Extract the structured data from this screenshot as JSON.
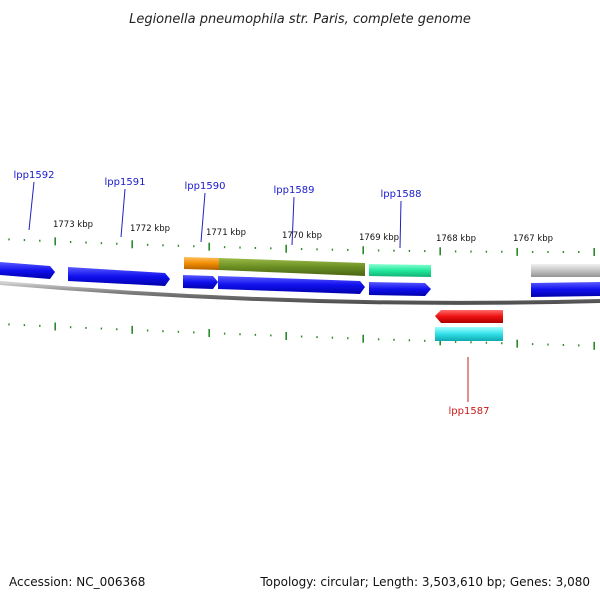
{
  "title": "Legionella pneumophila str. Paris, complete genome",
  "accession": "Accession: NC_006368",
  "topology": "Topology: circular; Length: 3,503,610 bp; Genes: 3,080",
  "kbp_labels": [
    "1773 kbp",
    "1772 kbp",
    "1771 kbp",
    "1770 kbp",
    "1769 kbp",
    "1768 kbp",
    "1767 kbp"
  ],
  "gene_labels": [
    {
      "text": "lpp1592",
      "color": "#1a1acc"
    },
    {
      "text": "lpp1591",
      "color": "#1a1acc"
    },
    {
      "text": "lpp1590",
      "color": "#1a1acc"
    },
    {
      "text": "lpp1589",
      "color": "#1a1acc"
    },
    {
      "text": "lpp1588",
      "color": "#1a1acc"
    },
    {
      "text": "lpp1587",
      "color": "#cc1a1a"
    }
  ],
  "colors": {
    "cds_forward": "#1414e6",
    "cds_reverse": "#e60000",
    "backbone": "#8a8a8a",
    "ticks": "#2a8a2a",
    "orange": "#f08c00",
    "olive": "#6b8e23",
    "mint": "#2ee8a0",
    "cyan": "#33e0e8",
    "grey": "#c0c0c0"
  }
}
